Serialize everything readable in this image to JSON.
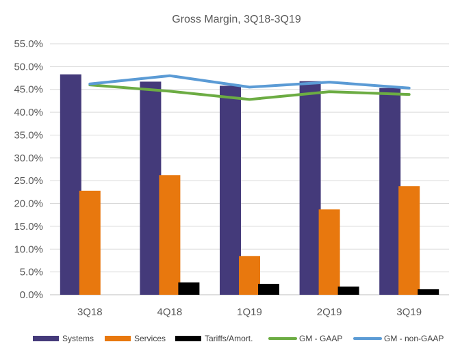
{
  "chart_data": {
    "type": "bar",
    "title": "Gross Margin, 3Q18-3Q19",
    "xlabel": "",
    "ylabel": "",
    "categories": [
      "3Q18",
      "4Q18",
      "1Q19",
      "2Q19",
      "3Q19"
    ],
    "ylim": [
      0,
      55
    ],
    "y_ticks": [
      0,
      5,
      10,
      15,
      20,
      25,
      30,
      35,
      40,
      45,
      50,
      55
    ],
    "y_tick_labels": [
      "0.0%",
      "5.0%",
      "10.0%",
      "15.0%",
      "20.0%",
      "25.0%",
      "30.0%",
      "35.0%",
      "40.0%",
      "45.0%",
      "50.0%",
      "55.0%"
    ],
    "grid": "horizontal",
    "legend_position": "bottom",
    "series": [
      {
        "name": "Systems",
        "kind": "bar",
        "color": "#443A7A",
        "values": [
          48.3,
          46.7,
          45.8,
          46.8,
          45.3
        ]
      },
      {
        "name": "Services",
        "kind": "bar",
        "color": "#E8780E",
        "values": [
          22.8,
          26.2,
          8.5,
          18.7,
          23.8
        ]
      },
      {
        "name": "Tariffs/Amort.",
        "kind": "bar",
        "color": "#000000",
        "values": [
          0.0,
          2.7,
          2.4,
          1.8,
          1.2
        ]
      },
      {
        "name": "GM - GAAP",
        "kind": "line",
        "color": "#6CAC43",
        "values": [
          46.0,
          44.6,
          42.8,
          44.5,
          43.9
        ]
      },
      {
        "name": "GM - non-GAAP",
        "kind": "line",
        "color": "#5B9BD5",
        "values": [
          46.2,
          48.0,
          45.5,
          46.6,
          45.3
        ]
      }
    ]
  }
}
